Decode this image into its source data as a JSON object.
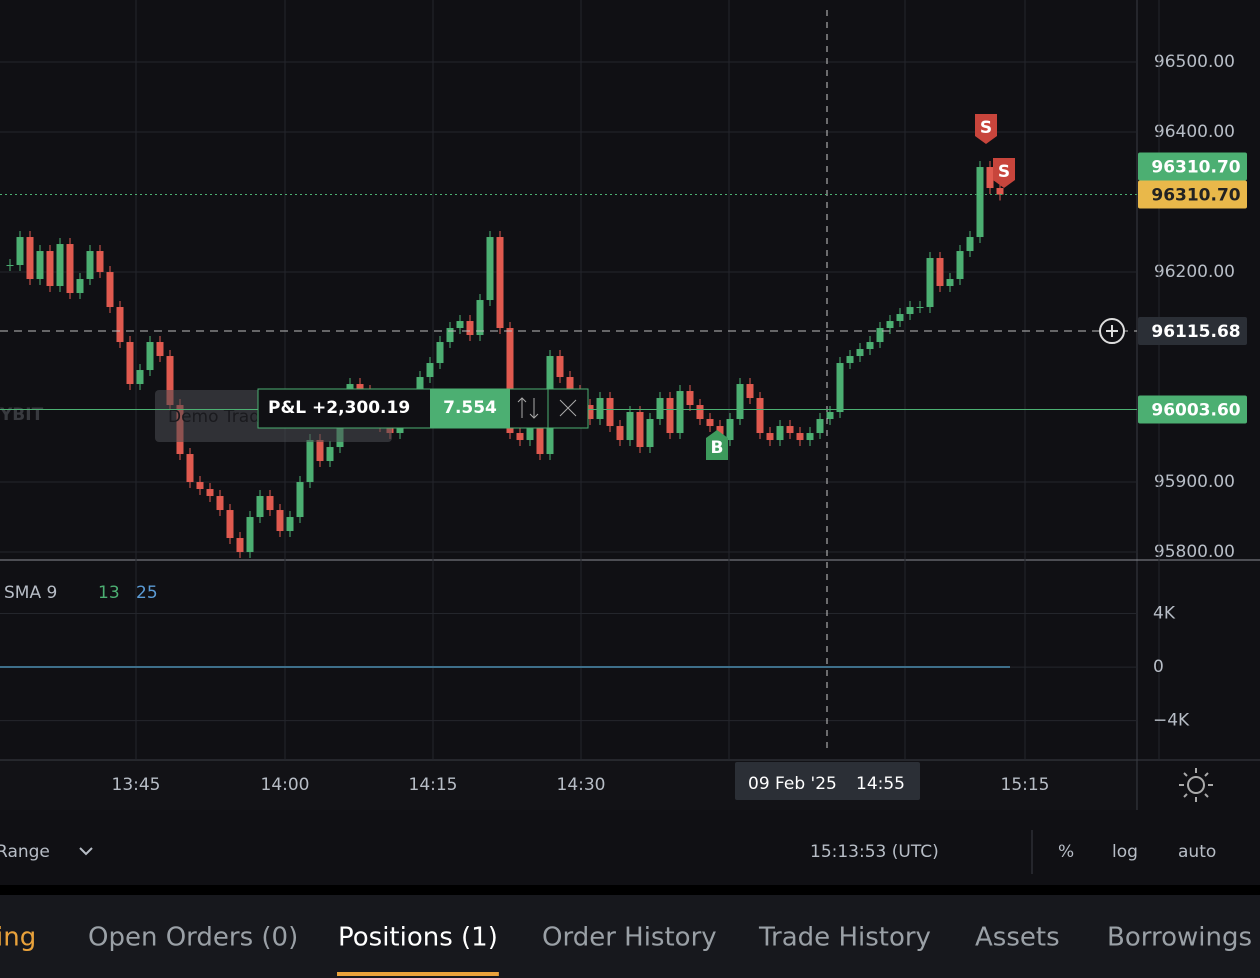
{
  "chart": {
    "type": "candlestick",
    "ylim": [
      95788.6,
      96588.6
    ],
    "yticks": [
      {
        "value": 95800,
        "label": "95800.00"
      },
      {
        "value": 95900,
        "label": "95900.00"
      },
      {
        "value": 96200,
        "label": "96200.00"
      },
      {
        "value": 96400,
        "label": "96400.00"
      },
      {
        "value": 96500,
        "label": "96500.00"
      }
    ],
    "xticks": [
      "13:45",
      "14:00",
      "14:15",
      "14:30",
      "15:15"
    ],
    "closes": [
      96210,
      96250,
      96190,
      96230,
      96180,
      96240,
      96170,
      96190,
      96230,
      96200,
      96150,
      96100,
      96040,
      96060,
      96100,
      96080,
      96010,
      95940,
      95900,
      95890,
      95880,
      95860,
      95820,
      95800,
      95850,
      95880,
      95860,
      95830,
      95850,
      95900,
      95960,
      95930,
      95950,
      96000,
      96040,
      96030,
      95990,
      95980,
      95970,
      96010,
      96020,
      96050,
      96070,
      96100,
      96120,
      96130,
      96110,
      96160,
      96250,
      96120,
      95970,
      95960,
      95990,
      95940,
      96080,
      96050,
      96030,
      96010,
      95990,
      96020,
      95980,
      95960,
      96000,
      95950,
      95990,
      96020,
      95970,
      96030,
      96010,
      95990,
      95980,
      95960,
      95990,
      96040,
      96020,
      95970,
      95960,
      95980,
      95970,
      95960,
      95970,
      95990,
      96000,
      96070,
      96080,
      96090,
      96100,
      96120,
      96130,
      96140,
      96150,
      96150,
      96220,
      96180,
      96190,
      96230,
      96250,
      96350,
      96320,
      96310.7
    ],
    "up_color": "#4caf72",
    "down_color": "#e05a4f",
    "price_lines": [
      {
        "value": 96310.7,
        "label": "96310.70",
        "color": "#4caf72"
      },
      {
        "value": 96310.7,
        "label": "96310.70",
        "color": "#e9b84a"
      },
      {
        "value": 96115.68,
        "label": "96115.68",
        "color": "#2b2f36"
      },
      {
        "value": 96003.6,
        "label": "96003.60",
        "color": "#4caf72"
      }
    ],
    "crosshair": {
      "date": "09 Feb '25",
      "time": "14:55"
    },
    "markers": [
      "S",
      "S",
      "B"
    ],
    "indicator": {
      "name": "SMA 9",
      "p2": 13,
      "p3": 25
    },
    "watermark": "Demo Trading",
    "order": {
      "pnl": "P&L +2,300.19",
      "qty": "7.554"
    }
  },
  "volume": {
    "ylim": [
      -6943,
      8000
    ],
    "yticks": [
      {
        "value": -4000,
        "label": "−4K"
      },
      {
        "value": 0,
        "label": "0"
      },
      {
        "value": 4000,
        "label": "4K"
      }
    ]
  },
  "toolbar": {
    "range": "Range",
    "clock": "15:13:53 (UTC)",
    "options": [
      "%",
      "log",
      "auto"
    ]
  },
  "tabs": [
    "ing",
    "Open Orders (0)",
    "Positions (1)",
    "Order History",
    "Trade History",
    "Assets",
    "Borrowings"
  ],
  "active_tab": 2
}
